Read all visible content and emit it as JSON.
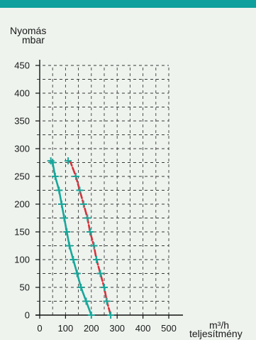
{
  "colors": {
    "background": "#eef3ee",
    "top_bar": "#0f9f9c",
    "grid": "#3a3a3a",
    "axis": "#111111",
    "series_teal": "#1aa69a",
    "series_red": "#d8303a",
    "marker": "#1aa69a"
  },
  "chart_data": {
    "type": "line",
    "title": "",
    "ylabel_line1": "Nyomás",
    "ylabel_line2": "mbar",
    "xlabel_line1": "m³/h",
    "xlabel_line2": "teljesítmény",
    "xlim": [
      0,
      500
    ],
    "ylim": [
      0,
      450
    ],
    "xticks": [
      0,
      100,
      200,
      300,
      400,
      500
    ],
    "yticks": [
      0,
      50,
      100,
      150,
      200,
      250,
      300,
      350,
      400,
      450
    ],
    "grid": true,
    "legend": "none",
    "series": [
      {
        "color_key": "series_teal",
        "points": [
          [
            43,
            278
          ],
          [
            50,
            275
          ],
          [
            60,
            250
          ],
          [
            75,
            225
          ],
          [
            85,
            200
          ],
          [
            95,
            175
          ],
          [
            105,
            150
          ],
          [
            115,
            125
          ],
          [
            130,
            100
          ],
          [
            145,
            75
          ],
          [
            160,
            50
          ],
          [
            180,
            25
          ],
          [
            200,
            0
          ]
        ]
      },
      {
        "color_key": "series_red",
        "points": [
          [
            110,
            278
          ],
          [
            120,
            275
          ],
          [
            140,
            250
          ],
          [
            155,
            225
          ],
          [
            170,
            200
          ],
          [
            185,
            175
          ],
          [
            195,
            150
          ],
          [
            210,
            125
          ],
          [
            220,
            100
          ],
          [
            235,
            75
          ],
          [
            250,
            50
          ],
          [
            260,
            25
          ],
          [
            275,
            0
          ]
        ]
      }
    ],
    "markers": [
      {
        "color_key": "series_teal",
        "points": [
          [
            43,
            278
          ],
          [
            50,
            275
          ],
          [
            60,
            250
          ],
          [
            75,
            225
          ],
          [
            85,
            200
          ],
          [
            95,
            175
          ],
          [
            105,
            150
          ],
          [
            115,
            125
          ],
          [
            130,
            100
          ],
          [
            145,
            75
          ],
          [
            160,
            50
          ],
          [
            180,
            25
          ],
          [
            200,
            0
          ]
        ]
      },
      {
        "color_key": "series_teal",
        "points": [
          [
            110,
            278
          ],
          [
            140,
            250
          ],
          [
            155,
            225
          ],
          [
            170,
            200
          ],
          [
            185,
            175
          ],
          [
            195,
            150
          ],
          [
            210,
            125
          ],
          [
            220,
            100
          ],
          [
            235,
            75
          ],
          [
            250,
            50
          ],
          [
            260,
            25
          ],
          [
            275,
            0
          ]
        ]
      }
    ]
  }
}
